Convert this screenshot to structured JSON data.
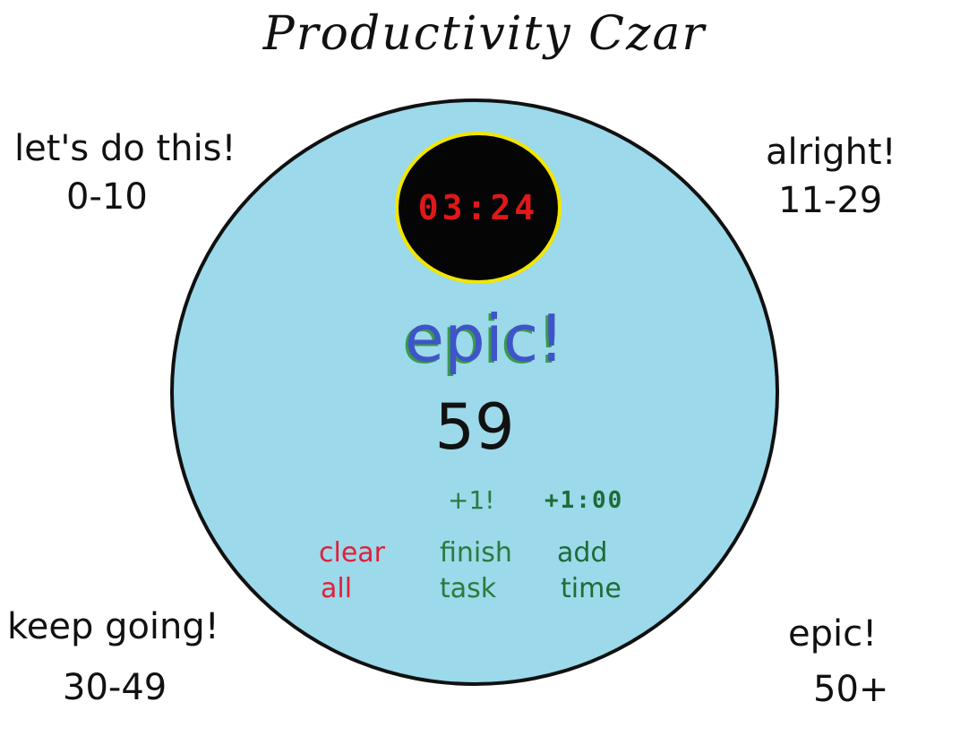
{
  "app": {
    "title": "Productivity Czar"
  },
  "tiers": [
    {
      "label": "let's do this!",
      "range": "0-10"
    },
    {
      "label": "alright!",
      "range": "11-29"
    },
    {
      "label": "keep going!",
      "range": "30-49"
    },
    {
      "label": "epic!",
      "range": "50+"
    }
  ],
  "timer": {
    "display": "03:24"
  },
  "status": {
    "rank": "epic!",
    "score": "59"
  },
  "increments": {
    "task": "+1!",
    "time": "+1:00"
  },
  "buttons": {
    "clear": [
      "clear",
      "all"
    ],
    "finish": [
      "finish",
      "task"
    ],
    "add": [
      "add",
      "time"
    ]
  },
  "colors": {
    "circle": "#9cd9ea",
    "timer_bg": "#050505",
    "timer_ring": "#f2e600",
    "timer_digits": "#e01818",
    "rank_text": "#3f54c8",
    "rank_shadow": "#3a9a4a",
    "clear": "#e0203a",
    "finish": "#2a7a3e"
  }
}
